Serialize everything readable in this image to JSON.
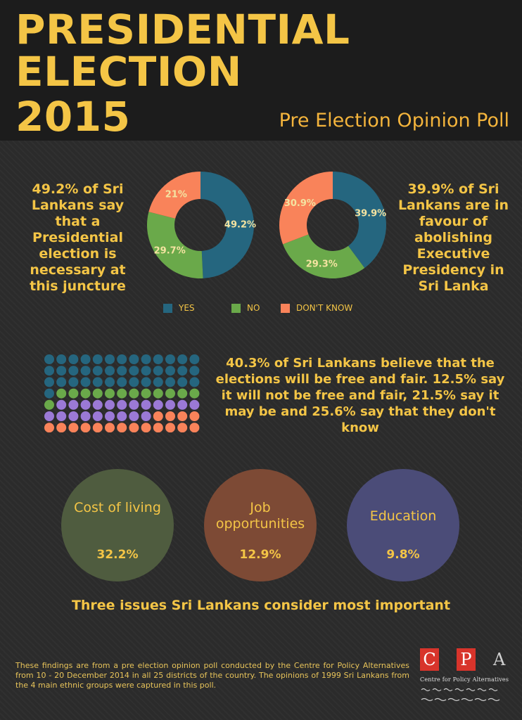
{
  "header": {
    "title_lines": [
      "PRESIDENTIAL",
      "ELECTION",
      "2015"
    ],
    "subtitle": "Pre Election Opinion Poll"
  },
  "poll1": {
    "text": "49.2% of Sri Lankans say that a Presidential election is necessary at this juncture"
  },
  "poll2": {
    "text": "39.9% of Sri Lankans are in favour of abolishing Executive Presidency in Sri Lanka"
  },
  "legend": [
    {
      "label": "YES",
      "color": "#25667f"
    },
    {
      "label": "NO",
      "color": "#6aa94a"
    },
    {
      "label": "DON'T KNOW",
      "color": "#f9835a"
    }
  ],
  "waffle": {
    "text": "40.3% of Sri Lankans believe that the elections will be free and fair. 12.5% say it will not be free and fair, 21.5% say it may be and 25.6% say that they don't know"
  },
  "issues": {
    "items": [
      {
        "label": "Cost of living",
        "value": "32.2%"
      },
      {
        "label": "Job opportunities",
        "value": "12.9%"
      },
      {
        "label": "Education",
        "value": "9.8%"
      }
    ],
    "caption": "Three issues Sri Lankans consider most important"
  },
  "footnote": "These findings are from a pre election opinion poll conducted by the Centre for Policy Alternatives from 10 - 20 December 2014 in all 25 districts of the country. The opinions of 1999 Sri Lankans from the 4 main ethnic groups were captured in this poll.",
  "logo": {
    "letters": [
      "C",
      "P",
      "A"
    ],
    "name": "Centre for Policy Alternatives",
    "red": "#d8342b"
  },
  "chart_data": [
    {
      "type": "pie",
      "categories": [
        "YES",
        "NO",
        "DON'T KNOW"
      ],
      "values": [
        49.2,
        29.7,
        21
      ],
      "labels": [
        "49.2%",
        "29.7%",
        "21%"
      ],
      "colors": [
        "#25667f",
        "#6aa94a",
        "#f9835a"
      ],
      "donut": true
    },
    {
      "type": "pie",
      "categories": [
        "YES",
        "NO",
        "DON'T KNOW"
      ],
      "values": [
        39.9,
        29.3,
        30.9
      ],
      "labels": [
        "39.9%",
        "29.3%",
        "30.9%"
      ],
      "colors": [
        "#25667f",
        "#6aa94a",
        "#f9835a"
      ],
      "donut": true
    },
    {
      "type": "waffle",
      "categories": [
        "free and fair",
        "not free and fair",
        "may be",
        "don't know"
      ],
      "values": [
        40.3,
        12.5,
        21.5,
        25.6
      ],
      "units_per_category": [
        40,
        13,
        21,
        26
      ],
      "colors": [
        "#25667f",
        "#6aa94a",
        "#9b79d6",
        "#f9835a"
      ]
    }
  ]
}
